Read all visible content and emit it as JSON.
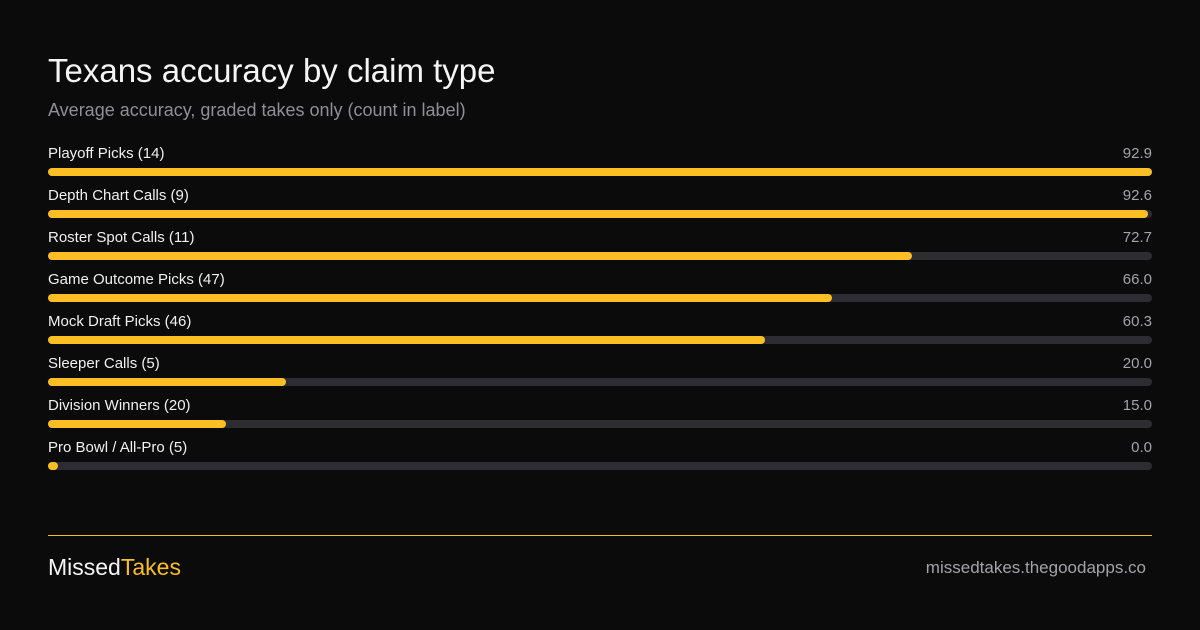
{
  "header": {
    "title": "Texans accuracy by claim type",
    "subtitle": "Average accuracy, graded takes only (count in label)"
  },
  "chart_data": {
    "type": "bar",
    "orientation": "horizontal",
    "title": "Texans accuracy by claim type",
    "subtitle": "Average accuracy, graded takes only (count in label)",
    "categories": [
      "Playoff Picks (14)",
      "Depth Chart Calls (9)",
      "Roster Spot Calls (11)",
      "Game Outcome Picks (47)",
      "Mock Draft Picks (46)",
      "Sleeper Calls (5)",
      "Division Winners (20)",
      "Pro Bowl / All-Pro (5)"
    ],
    "values": [
      92.9,
      92.6,
      72.7,
      66.0,
      60.3,
      20.0,
      15.0,
      0.0
    ],
    "value_labels": [
      "92.9",
      "92.6",
      "72.7",
      "66.0",
      "60.3",
      "20.0",
      "15.0",
      "0.0"
    ],
    "xlim": [
      0,
      92.9
    ],
    "grid": false,
    "colors": {
      "bar": "#fbbf24",
      "track": "#2c2c32"
    }
  },
  "footer": {
    "brand_part1": "Missed",
    "brand_part2": "Takes",
    "url": "missedtakes.thegoodapps.co"
  },
  "colors": {
    "background": "#0b0b0b",
    "accent": "#fbbf24"
  }
}
